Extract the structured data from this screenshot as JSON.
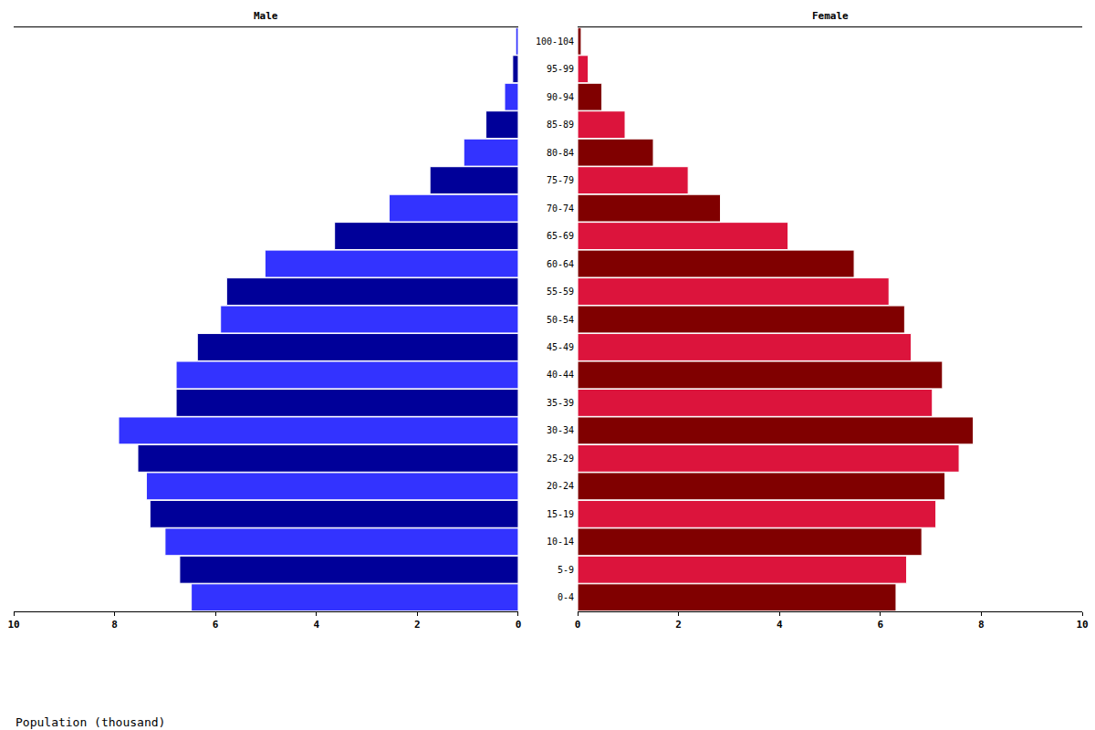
{
  "chart_data": {
    "type": "bar",
    "orientation": "horizontal",
    "xlabel": "Population (thousand)",
    "categories": [
      "0-4",
      "5-9",
      "10-14",
      "15-19",
      "20-24",
      "25-29",
      "30-34",
      "35-39",
      "40-44",
      "45-49",
      "50-54",
      "55-59",
      "60-64",
      "65-69",
      "70-74",
      "75-79",
      "80-84",
      "85-89",
      "90-94",
      "95-99",
      "100-104"
    ],
    "xlim": [
      0,
      10
    ],
    "xticks": [
      0,
      2,
      4,
      6,
      8,
      10
    ],
    "grid": false,
    "series": [
      {
        "name": "Male",
        "colors": [
          "#3333ff",
          "#000099",
          "#3333ff",
          "#000099",
          "#3333ff",
          "#000099",
          "#3333ff",
          "#000099",
          "#3333ff",
          "#000099",
          "#3333ff",
          "#000099",
          "#3333ff",
          "#000099",
          "#3333ff",
          "#000099",
          "#3333ff",
          "#000099",
          "#3333ff",
          "#000099",
          "#3333ff"
        ],
        "values": [
          6.48,
          6.71,
          7.0,
          7.3,
          7.37,
          7.54,
          7.92,
          6.78,
          6.78,
          6.36,
          5.9,
          5.78,
          5.02,
          3.64,
          2.56,
          1.75,
          1.08,
          0.64,
          0.27,
          0.11,
          0.05
        ]
      },
      {
        "name": "Female",
        "colors": [
          "#800000",
          "#dc143c",
          "#800000",
          "#dc143c",
          "#800000",
          "#dc143c",
          "#800000",
          "#dc143c",
          "#800000",
          "#dc143c",
          "#800000",
          "#dc143c",
          "#800000",
          "#dc143c",
          "#800000",
          "#dc143c",
          "#800000",
          "#dc143c",
          "#800000",
          "#dc143c",
          "#800000"
        ],
        "values": [
          6.31,
          6.52,
          6.82,
          7.1,
          7.28,
          7.56,
          7.84,
          7.03,
          7.23,
          6.61,
          6.48,
          6.17,
          5.48,
          4.17,
          2.83,
          2.19,
          1.5,
          0.94,
          0.48,
          0.21,
          0.07
        ]
      }
    ]
  }
}
